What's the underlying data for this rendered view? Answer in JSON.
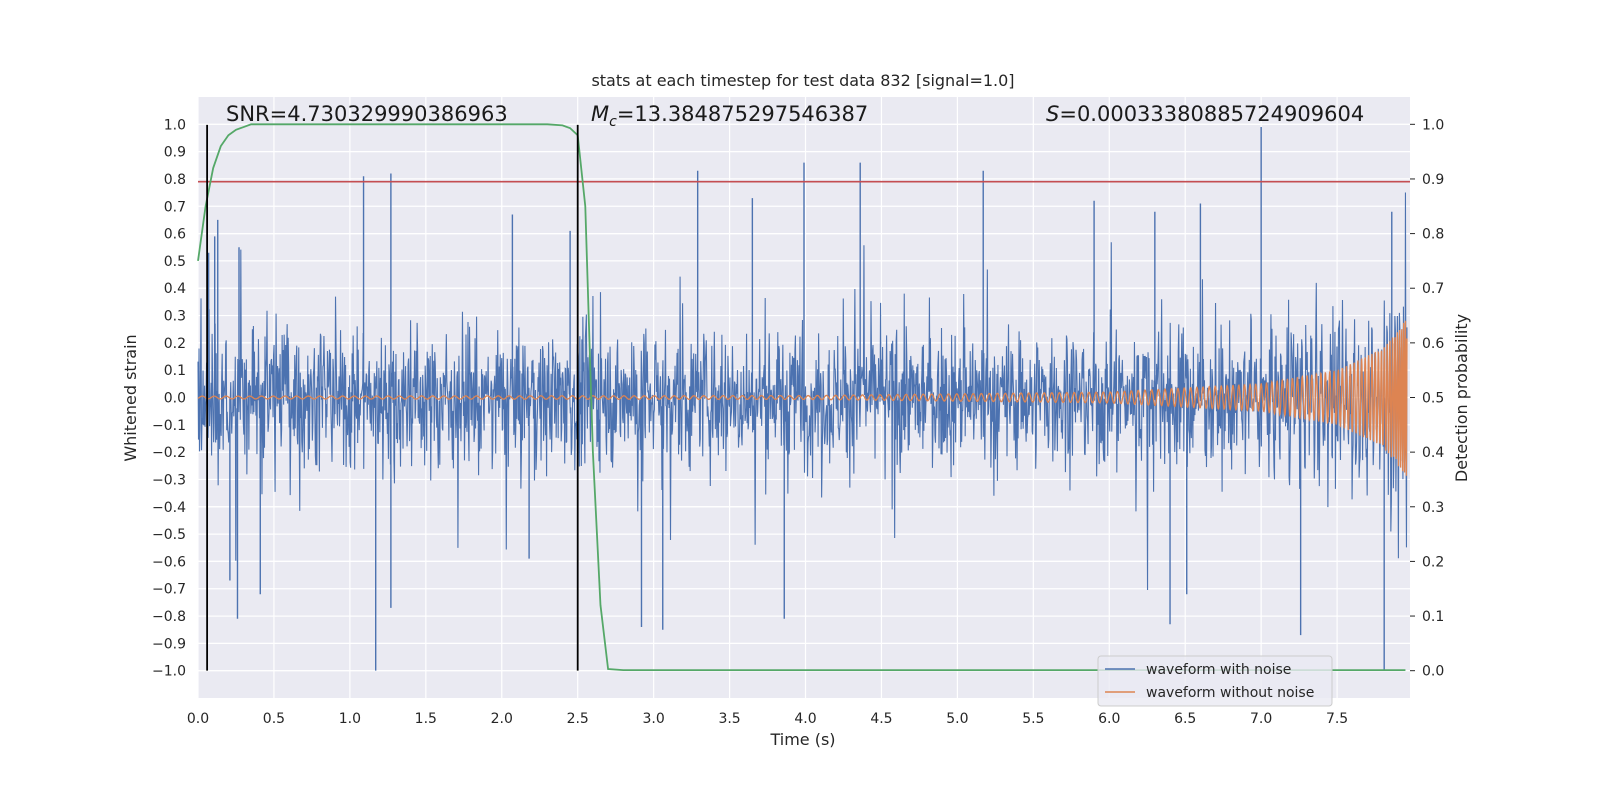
{
  "chart_data": {
    "type": "line",
    "title": "stats at each timestep for test data 832 [signal=1.0]",
    "xlabel": "Time (s)",
    "ylabel": "Whitened strain",
    "y2label": "Detection probability",
    "xlim": [
      0.0,
      7.98
    ],
    "ylim": [
      -1.1,
      1.1
    ],
    "y2lim": [
      -0.05,
      1.05
    ],
    "x_ticks": [
      "0.0",
      "0.5",
      "1.0",
      "1.5",
      "2.0",
      "2.5",
      "3.0",
      "3.5",
      "4.0",
      "4.5",
      "5.0",
      "5.5",
      "6.0",
      "6.5",
      "7.0",
      "7.5"
    ],
    "y_ticks": [
      "1.0",
      "0.9",
      "0.8",
      "0.7",
      "0.6",
      "0.5",
      "0.4",
      "0.3",
      "0.2",
      "0.1",
      "0.0",
      "−0.1",
      "−0.2",
      "−0.3",
      "−0.4",
      "−0.5",
      "−0.6",
      "−0.7",
      "−0.8",
      "−0.9",
      "−1.0"
    ],
    "y2_ticks": [
      "1.0",
      "0.9",
      "0.8",
      "0.7",
      "0.6",
      "0.5",
      "0.4",
      "0.3",
      "0.2",
      "0.1",
      "0.0"
    ],
    "grid": true,
    "legend_position": "lower-right",
    "annotations": {
      "snr": "SNR=4.730329990386963",
      "mc_symbol": "M",
      "mc_sub": "c",
      "mc_value": "=13.384875297546387",
      "s_symbol": "S",
      "s_value": "=0.00033380885724909604"
    },
    "threshold_line": {
      "axis": "y",
      "value": 0.79,
      "color": "#c44e52"
    },
    "vertical_lines": [
      0.06,
      2.5
    ],
    "colors": {
      "noisy": "#4c72b0",
      "clean": "#dd8452",
      "probability": "#55a868",
      "vline": "#000000"
    },
    "series": [
      {
        "name": "waveform with noise",
        "description_range": "dense noise, bulk within -0.4..0.5, spikes to about 0.99 and -1.0",
        "notable_peaks": [
          [
            0.07,
            0.53
          ],
          [
            0.11,
            0.59
          ],
          [
            0.13,
            0.65
          ],
          [
            0.27,
            0.55
          ],
          [
            1.09,
            0.81
          ],
          [
            1.27,
            0.82
          ],
          [
            2.07,
            0.67
          ],
          [
            2.45,
            0.61
          ],
          [
            3.29,
            0.83
          ],
          [
            3.65,
            0.73
          ],
          [
            3.99,
            0.86
          ],
          [
            4.36,
            0.86
          ],
          [
            5.17,
            0.83
          ],
          [
            5.9,
            0.72
          ],
          [
            6.3,
            0.68
          ],
          [
            6.6,
            0.71
          ],
          [
            7.0,
            0.99
          ],
          [
            7.86,
            0.68
          ]
        ],
        "notable_troughs": [
          [
            0.21,
            -0.67
          ],
          [
            0.26,
            -0.81
          ],
          [
            0.41,
            -0.72
          ],
          [
            1.17,
            -1.0
          ],
          [
            1.27,
            -0.77
          ],
          [
            2.18,
            -0.59
          ],
          [
            2.92,
            -0.84
          ],
          [
            3.06,
            -0.85
          ],
          [
            3.86,
            -0.81
          ],
          [
            6.4,
            -0.83
          ],
          [
            6.51,
            -0.72
          ],
          [
            7.26,
            -0.87
          ],
          [
            7.81,
            -1.0
          ]
        ]
      },
      {
        "name": "waveform without noise",
        "description_range": "chirp, amplitude near 0.005 rising to about 0.29 at end",
        "amplitude_points": [
          [
            0.0,
            0.005
          ],
          [
            4.0,
            0.007
          ],
          [
            6.0,
            0.02
          ],
          [
            7.0,
            0.05
          ],
          [
            7.5,
            0.1
          ],
          [
            7.8,
            0.18
          ],
          [
            7.96,
            0.29
          ]
        ]
      },
      {
        "name": "detection probability",
        "axis": "y2",
        "x": [
          0.0,
          0.05,
          0.1,
          0.15,
          0.2,
          0.25,
          0.3,
          0.35,
          0.4,
          0.6,
          1.0,
          1.5,
          2.0,
          2.3,
          2.4,
          2.45,
          2.5,
          2.55,
          2.6,
          2.65,
          2.7,
          2.8,
          3.0,
          3.5,
          4.0,
          5.0,
          6.0,
          7.0,
          7.5,
          7.95
        ],
        "values": [
          0.75,
          0.85,
          0.92,
          0.96,
          0.98,
          0.99,
          0.995,
          1.0,
          1.0,
          1.0,
          1.0,
          1.0,
          1.0,
          1.0,
          0.998,
          0.993,
          0.98,
          0.85,
          0.4,
          0.12,
          0.003,
          0.001,
          0.001,
          0.001,
          0.001,
          0.001,
          0.001,
          0.001,
          0.001,
          0.001
        ]
      }
    ]
  }
}
